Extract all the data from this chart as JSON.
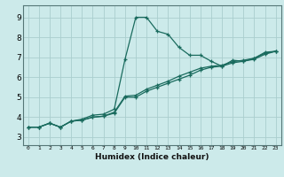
{
  "xlabel": "Humidex (Indice chaleur)",
  "x_ticks": [
    0,
    1,
    2,
    3,
    4,
    5,
    6,
    7,
    8,
    9,
    10,
    11,
    12,
    13,
    14,
    15,
    16,
    17,
    18,
    19,
    20,
    21,
    22,
    23
  ],
  "y_ticks": [
    3,
    4,
    5,
    6,
    7,
    8,
    9
  ],
  "xlim": [
    -0.5,
    23.5
  ],
  "ylim": [
    2.6,
    9.6
  ],
  "line_color": "#1a6b5e",
  "bg_color": "#cceaea",
  "grid_color": "#aacece",
  "series1_x": [
    0,
    1,
    2,
    3,
    4,
    5,
    6,
    7,
    8,
    9,
    10,
    11,
    12,
    13,
    14,
    15,
    16,
    17,
    18,
    19,
    20,
    21,
    22,
    23
  ],
  "series1_y": [
    3.5,
    3.5,
    3.7,
    3.5,
    3.8,
    3.9,
    4.1,
    4.15,
    4.4,
    6.9,
    9.0,
    9.0,
    8.3,
    8.15,
    7.5,
    7.1,
    7.1,
    6.8,
    6.55,
    6.85,
    6.8,
    6.95,
    7.25,
    7.3
  ],
  "series2_x": [
    0,
    1,
    2,
    3,
    4,
    5,
    6,
    7,
    8,
    9,
    10,
    11,
    12,
    13,
    14,
    15,
    16,
    17,
    18,
    19,
    20,
    21,
    22,
    23
  ],
  "series2_y": [
    3.5,
    3.5,
    3.7,
    3.5,
    3.8,
    3.85,
    4.0,
    4.05,
    4.25,
    5.05,
    5.1,
    5.4,
    5.6,
    5.8,
    6.05,
    6.25,
    6.45,
    6.55,
    6.6,
    6.78,
    6.85,
    6.95,
    7.2,
    7.3
  ],
  "series3_x": [
    0,
    1,
    2,
    3,
    4,
    5,
    6,
    7,
    8,
    9,
    10,
    11,
    12,
    13,
    14,
    15,
    16,
    17,
    18,
    19,
    20,
    21,
    22,
    23
  ],
  "series3_y": [
    3.5,
    3.5,
    3.7,
    3.5,
    3.8,
    3.85,
    4.0,
    4.05,
    4.2,
    5.0,
    5.0,
    5.3,
    5.5,
    5.7,
    5.9,
    6.1,
    6.35,
    6.5,
    6.55,
    6.72,
    6.8,
    6.9,
    7.15,
    7.3
  ]
}
